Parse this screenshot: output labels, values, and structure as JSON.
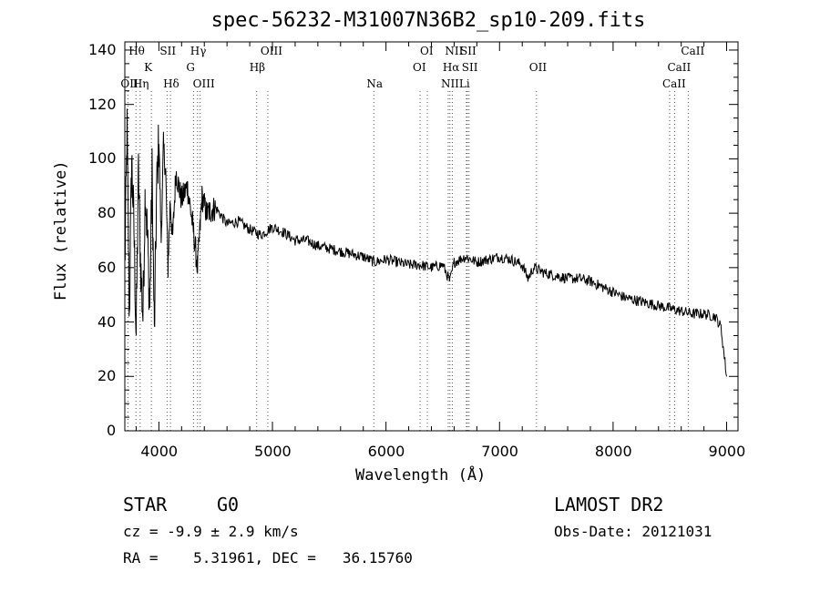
{
  "chart_data": {
    "type": "line",
    "title": "spec-56232-M31007N36B2_sp10-209.fits",
    "xlabel": "Wavelength (Å)",
    "ylabel": "Flux (relative)",
    "xlim": [
      3700,
      9100
    ],
    "ylim": [
      0,
      143
    ],
    "xticks": [
      4000,
      5000,
      6000,
      7000,
      8000,
      9000
    ],
    "yticks": [
      0,
      20,
      40,
      60,
      80,
      100,
      120,
      140
    ],
    "grid": false,
    "series": [
      {
        "x": [
          3700,
          3720,
          3740,
          3760,
          3780,
          3800,
          3820,
          3840,
          3860,
          3880,
          3900,
          3920,
          3940,
          3960,
          3980,
          4000,
          4020,
          4040,
          4060,
          4080,
          4100,
          4120,
          4150,
          4200,
          4250,
          4300,
          4340,
          4380,
          4420,
          4500,
          4600,
          4700,
          4800,
          4900,
          5000,
          5100,
          5200,
          5300,
          5400,
          5500,
          5600,
          5700,
          5800,
          5900,
          6000,
          6100,
          6200,
          6300,
          6400,
          6500,
          6563,
          6600,
          6700,
          6800,
          6900,
          7000,
          7100,
          7200,
          7250,
          7300,
          7400,
          7500,
          7600,
          7700,
          7800,
          7900,
          8000,
          8100,
          8200,
          8300,
          8400,
          8500,
          8600,
          8700,
          8800,
          8900,
          8950,
          9000
        ],
        "y": [
          60,
          110,
          42,
          100,
          75,
          35,
          95,
          60,
          42,
          90,
          70,
          45,
          95,
          35,
          88,
          108,
          70,
          105,
          95,
          60,
          85,
          70,
          95,
          85,
          90,
          75,
          60,
          86,
          80,
          82,
          76,
          77,
          74,
          72,
          75,
          73,
          70,
          70,
          68,
          67,
          66,
          65,
          64,
          62,
          63,
          62,
          61,
          61,
          60,
          61,
          55,
          62,
          64,
          62,
          63,
          64,
          63,
          61,
          56,
          60,
          58,
          57,
          56,
          56,
          55,
          53,
          51,
          49,
          48,
          47,
          46,
          45,
          44,
          43,
          43,
          42,
          38,
          20
        ]
      }
    ],
    "lines": [
      {
        "label": "Hθ",
        "x": 3798,
        "row": 1
      },
      {
        "label": "OII",
        "x": 3727,
        "row": 3
      },
      {
        "label": "Hη",
        "x": 3835,
        "row": 3
      },
      {
        "label": "K",
        "x": 3934,
        "row": 2
      },
      {
        "label": "SII",
        "x": 4072,
        "row": 1
      },
      {
        "label": "Hδ",
        "x": 4102,
        "row": 3
      },
      {
        "label": "Hγ",
        "x": 4340,
        "row": 1
      },
      {
        "label": "G",
        "x": 4305,
        "row": 2
      },
      {
        "label": "OIII",
        "x": 4363,
        "row": 3
      },
      {
        "label": "OIII",
        "x": 4959,
        "row": 1
      },
      {
        "label": "Hβ",
        "x": 4861,
        "row": 2
      },
      {
        "label": "Na",
        "x": 5893,
        "row": 3
      },
      {
        "label": "OI",
        "x": 6364,
        "row": 1
      },
      {
        "label": "OI",
        "x": 6300,
        "row": 2
      },
      {
        "label": "NII",
        "x": 6584,
        "row": 1
      },
      {
        "label": "SII",
        "x": 6717,
        "row": 1
      },
      {
        "label": "Hα",
        "x": 6563,
        "row": 2
      },
      {
        "label": "SII",
        "x": 6731,
        "row": 2
      },
      {
        "label": "NII",
        "x": 6548,
        "row": 3
      },
      {
        "label": "Li",
        "x": 6708,
        "row": 3
      },
      {
        "label": "OII",
        "x": 7325,
        "row": 2
      },
      {
        "label": "CaII",
        "x": 8662,
        "row": 1
      },
      {
        "label": "CaII",
        "x": 8542,
        "row": 2
      },
      {
        "label": "CaII",
        "x": 8498,
        "row": 3
      }
    ]
  },
  "info": {
    "class": "STAR",
    "subclass": "G0",
    "survey": "LAMOST DR2",
    "redshift": "cz = -9.9 ± 2.9 km/s",
    "obsdate": "Obs-Date: 20121031",
    "coords": "RA =    5.31961, DEC =   36.15760"
  }
}
